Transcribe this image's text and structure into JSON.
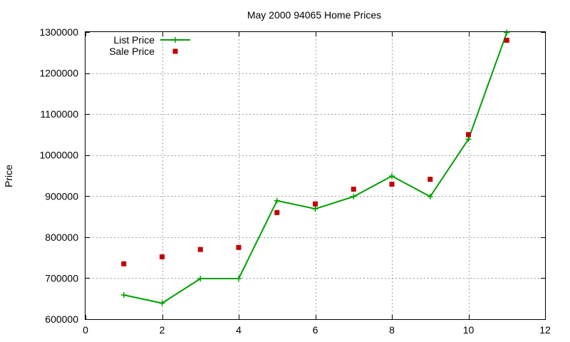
{
  "chart_data": {
    "type": "line",
    "title": "May 2000 94065 Home Prices",
    "xlabel": "",
    "ylabel": "Price",
    "xlim": [
      0,
      12
    ],
    "ylim": [
      600000,
      1300000
    ],
    "xticks": [
      0,
      2,
      4,
      6,
      8,
      10,
      12
    ],
    "yticks": [
      600000,
      700000,
      800000,
      900000,
      1000000,
      1100000,
      1200000,
      1300000
    ],
    "grid": true,
    "legend_position": "top-left",
    "series": [
      {
        "name": "List Price",
        "style": "line-with-plus-markers",
        "color": "#00a000",
        "x": [
          1,
          2,
          3,
          4,
          5,
          6,
          7,
          8,
          9,
          10,
          11
        ],
        "y": [
          659000,
          639000,
          699000,
          699000,
          889000,
          869000,
          899000,
          949000,
          899000,
          1039000,
          1299000
        ]
      },
      {
        "name": "Sale Price",
        "style": "square-points",
        "color": "#c00000",
        "x": [
          1,
          2,
          3,
          4,
          5,
          6,
          7,
          8,
          9,
          10,
          11
        ],
        "y": [
          735000,
          752000,
          770000,
          775000,
          860000,
          881000,
          917000,
          929000,
          941000,
          1050000,
          1280000
        ]
      }
    ]
  }
}
